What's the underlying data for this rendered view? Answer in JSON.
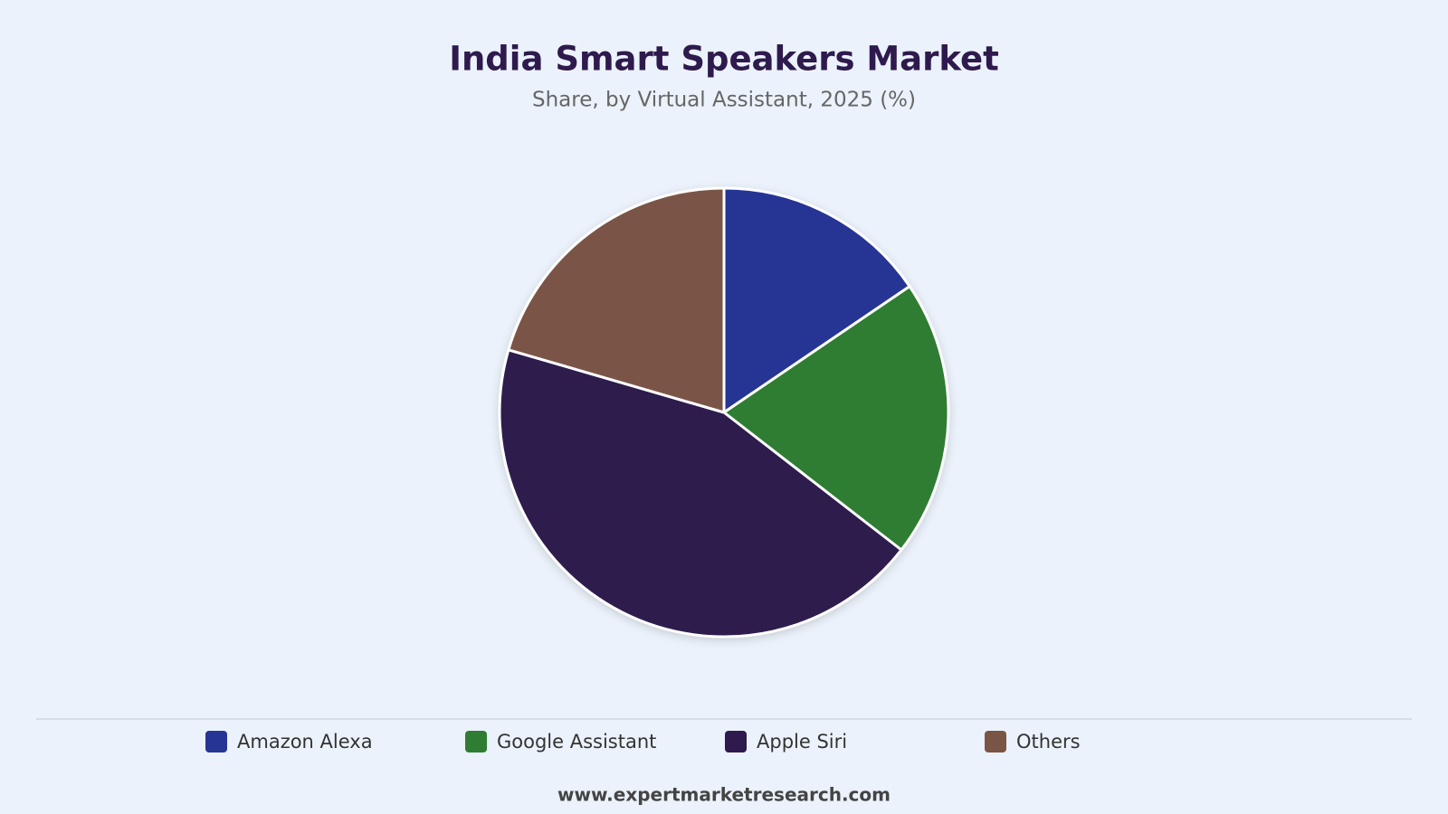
{
  "chart_data": {
    "type": "pie",
    "title": "India Smart Speakers Market",
    "subtitle": "Share, by Virtual Assistant, 2025 (%)",
    "categories": [
      "Amazon Alexa",
      "Google Assistant",
      "Apple Siri",
      "Others"
    ],
    "values": [
      15.5,
      20,
      44,
      20.5
    ],
    "colors": [
      "#263594",
      "#2f7d32",
      "#2e1a4d",
      "#7a5546"
    ]
  },
  "footer": {
    "source": "www.expertmarketresearch.com"
  }
}
